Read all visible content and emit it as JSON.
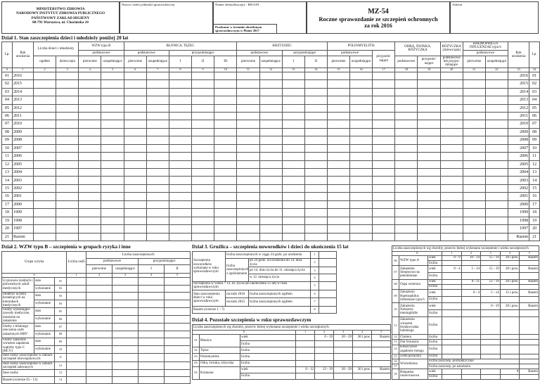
{
  "header": {
    "institution": [
      "MINISTERSTWO ZDROWIA",
      "NARODOWY INSTYTUT ZDROWIA PUBLICZNEGO",
      "PAŃSTWOWY ZAKŁAD HIGIENY",
      "00-791 Warszawa, ul. Chocimska 24"
    ],
    "unit_label": "Nazwa i adres jednostki sprawozdawczej",
    "regon_label": "Numer identyfikacyjny - REGON",
    "deadline": "Przekazać w terminie określonym sprawozdawczym w Planie 2017",
    "code": "MZ-54",
    "title": "Roczne sprawozdanie ze szczepień ochronnych",
    "period": "za rok 2016",
    "addressee": "Adresat"
  },
  "section1": {
    "title": "Dział 1. Stan zaszczepienia dzieci i młodzieży poniżej 20 lat",
    "lp": "Lp.",
    "year": "Rok urodzenia",
    "count": {
      "label": "Liczba dzieci i młodzieży",
      "total": "ogółem",
      "girls": "dziewczęta"
    },
    "hepb": {
      "label": "WZW typu B",
      "basic": "podstawowe",
      "primary": "pierwotne",
      "supplementary": "uzupełnia­jące"
    },
    "dt": {
      "label": "BŁONICA, TĘŻEC",
      "basic": "podstawowe",
      "primary": "pierwotne",
      "supplementary": "uzupełnia­jące",
      "booster": "przypominające",
      "doses": [
        "I",
        "II",
        "III"
      ]
    },
    "pertussis": {
      "label": "KRZTUSIEC",
      "basic": "podstawowe",
      "primary": "pierwotne",
      "supplementary": "uzupełnia­jące",
      "booster": "przypominające",
      "doses": [
        "I",
        "II"
      ]
    },
    "polio": {
      "label": "POLIOMYELITIS",
      "basic": "podstawowe",
      "primary": "pierwotne",
      "supplementary": "uzupełnia­jące",
      "booster": "przypomi­nające"
    },
    "mmr": {
      "label": "ODRA, ŚWINKA, RÓŻYCZKA",
      "basic": "podstawo­we",
      "booster": "przypomi­nające"
    },
    "rubella": {
      "label": "RÓŻYCZKA",
      "note": "(dziewczęta)",
      "dose": "podstawowe lub przypo­minające"
    },
    "hib": {
      "label": "HAEMOPHILUS INFLUENZAE typu b",
      "basic": "podstawowe",
      "primary": "pierwotne",
      "supplementary": "uzupełnia­jące"
    },
    "column_numbers": [
      0,
      1,
      2,
      3,
      4,
      5,
      6,
      7,
      8,
      9,
      10,
      11,
      12,
      13,
      14,
      15,
      16,
      17,
      18,
      19,
      20,
      21,
      22,
      23,
      24
    ],
    "rows": [
      [
        "01",
        "2016"
      ],
      [
        "02",
        "2015"
      ],
      [
        "03",
        "2014"
      ],
      [
        "04",
        "2013"
      ],
      [
        "05",
        "2012"
      ],
      [
        "06",
        "2011"
      ],
      [
        "07",
        "2010"
      ],
      [
        "08",
        "2009"
      ],
      [
        "09",
        "2008"
      ],
      [
        "10",
        "2007"
      ],
      [
        "11",
        "2006"
      ],
      [
        "12",
        "2005"
      ],
      [
        "13",
        "2004"
      ],
      [
        "14",
        "2003"
      ],
      [
        "15",
        "2002"
      ],
      [
        "16",
        "2001"
      ],
      [
        "17",
        "2000"
      ],
      [
        "18",
        "1999"
      ],
      [
        "19",
        "1998"
      ],
      [
        "20",
        "1997"
      ]
    ],
    "total": [
      "21",
      "Razem"
    ]
  },
  "section2": {
    "title": "Dział 2. WZW typu B – szczepienia w grupach ryzyka i inne",
    "group": "Grupa ryzyka",
    "persons": "Liczba osób",
    "vaccinated": "Liczba zaszczepionych",
    "basic": "podstawowe",
    "booster": "przypominające",
    "primary": "pierwotne",
    "supplementary": "uzupeł­niające",
    "doses": [
      "I",
      "II"
    ],
    "column_numbers": [
      0,
      1,
      2,
      3,
      4,
      5
    ],
    "groups": [
      {
        "label": "Uczniowie średnich i policealnych szkół medycznych",
        "rows": [
          [
            "stan",
            "01"
          ],
          [
            "wykonanie",
            "02"
          ]
        ]
      },
      {
        "label": "Studenci uczelni kształcących na kierunkach medycznych",
        "rows": [
          [
            "stan",
            "03"
          ],
          [
            "wykonanie",
            "04"
          ]
        ]
      },
      {
        "label": "Osoby wykonujące zawody medyczne, narażone na zakażenie",
        "rows": [
          [
            "stan",
            "05"
          ],
          [
            "wykonanie",
            "06"
          ]
        ]
      },
      {
        "label": "Osoby z bliskiego otoczenia osób zakażonych HBV",
        "rows": [
          [
            "stan",
            "07"
          ],
          [
            "wykonanie",
            "08"
          ]
        ]
      },
      {
        "label": "Osoby zakażone wirusem zapalenia wątroby typu C (HCV)",
        "rows": [
          [
            "stan",
            "09"
          ],
          [
            "wykonanie",
            "10"
          ]
        ]
      },
      {
        "label": "Inne osoby zaszczepione w ramach szczepień obowiązkowych",
        "no": "11"
      },
      {
        "label": "Inne osoby zaszczepione w ramach szczepień zalecanych",
        "no": "12"
      },
      {
        "label": "Inne osoby",
        "no": "13"
      },
      {
        "label": "Razem (wiersze 01 - 13)",
        "no": "14"
      }
    ]
  },
  "section3": {
    "title": "Dział 3. Gruźlica – szczepienia noworodków i dzieci do ukończenia 15 lat",
    "newborns": "Szczepienia noworodków wykonane w roku sprawozdawczym",
    "within24": [
      "liczba zaszczepionych w ciągu 24 godz. po urodzeniu",
      1
    ],
    "delayed": "liczba zaszczepionych z opóźnieniem",
    "delayed_rows": [
      [
        "po 24 godz. od urodzenia do 14. dnia życia",
        2
      ],
      [
        "po 14. dniu życia do 11. miesiąca życia",
        3
      ],
      [
        "w 12. miesiącu życia",
        4
      ]
    ],
    "older": [
      "Szczepienia w wieku > 12. m. życia (do ukończenia 15 lat) w roku sprawozdawczym",
      5
    ],
    "status": "Stan zaszczepienia dzieci w roku sprawozdawczym",
    "status_rows": [
      [
        "rocznik 2016",
        "liczba zaszczepionych ogółem",
        6
      ],
      [
        "rocznik 2015",
        "liczba zaszczepionych ogółem",
        7
      ]
    ],
    "total": [
      "Razem (wiersze 1 - 7)",
      8
    ]
  },
  "section4": {
    "title": "Dział 4. Pozostałe szczepienia w roku sprawozdawczym",
    "header": "Liczba zaszczepionych wg choroby, przeciw której wykonano szczepienie i wieku szczepionych",
    "column_numbers": [
      0,
      1,
      2,
      3,
      4,
      5
    ],
    "age": "wiek",
    "count": "liczba",
    "rows": [
      {
        "no": "01",
        "disease": "Błonica",
        "ages": [
          "0 - 19",
          "20 - 29",
          "30 i pow.",
          "Razem"
        ]
      },
      {
        "no": "02",
        "disease": "Tężec"
      },
      {
        "no": "03",
        "disease": "Poliomyelitis"
      },
      {
        "no": "04",
        "disease": "Odra, świnka, różyczka"
      },
      {
        "no": "05",
        "disease": "Krztusiec",
        "ages": [
          "0 - 12",
          "13 - 19",
          "20 - 29",
          "30 i pow.",
          "Razem"
        ]
      }
    ]
  },
  "section5": {
    "header": "Liczba zaszczepionych wg choroby, przeciw której wykonano szczepienie i wieku szczepionych",
    "column_numbers": [
      0,
      1,
      2,
      3,
      4,
      5
    ],
    "age": "wiek",
    "count": "liczba",
    "rows": [
      {
        "no": "06",
        "disease": "WZW typu A",
        "ages": [
          "0 - 9",
          "10 - 14",
          "15 - 19",
          "20 i pow.",
          "Razem"
        ]
      },
      {
        "no": "07",
        "disease": "Zakażenia Streptococcus pneumoniae",
        "ages": [
          "0 - 4",
          "5 - 14",
          "15 - 19",
          "20 i pow.",
          "Razem"
        ]
      },
      {
        "no": "08",
        "disease": "Ospa wietrzna",
        "ages": [
          "0 - 11",
          "12 - 19",
          "20 i pow.",
          "Razem"
        ]
      },
      {
        "no": "09",
        "disease": "Zakażenia Haemophilus influenzae typu b",
        "ages": [
          "0 - 4",
          "5 - 14",
          "15 i pow.",
          "Razem"
        ]
      },
      {
        "no": "10",
        "disease": "Zakażenia Neisseria meningitidis",
        "ages": [
          "0 - 19",
          "20 i pow.",
          "Razem"
        ]
      },
      {
        "no": "11",
        "disease": "Zakażenia wirusem brodawczaka ludzkiego"
      },
      {
        "no": "12",
        "disease": "Cholera"
      },
      {
        "no": "13",
        "disease": "Dur brzuszny"
      },
      {
        "no": "14",
        "disease": "Kleszczowe zapalenie mózgu"
      },
      {
        "no": "15",
        "disease": "Żółta gorączka"
      },
      {
        "disease": "Wścieklizna",
        "sub": [
          [
            "16",
            "liczba zaszczep. profilaktycznie"
          ],
          [
            "17",
            "liczba zaszczep. po narażeniu"
          ]
        ]
      },
      {
        "no": "18",
        "disease": "Biegunka rotawirusowa",
        "ages": [
          "0",
          "Razem"
        ]
      }
    ]
  }
}
